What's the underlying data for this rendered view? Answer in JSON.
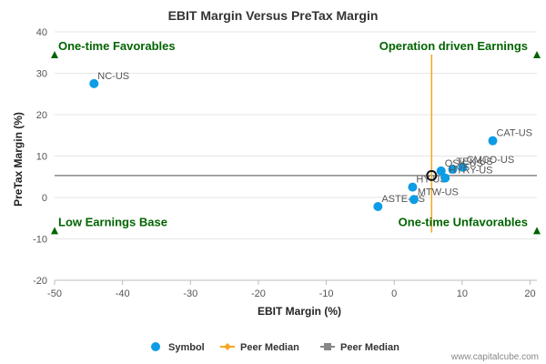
{
  "chart_data": {
    "type": "scatter",
    "title": "EBIT Margin Versus PreTax Margin",
    "xlabel": "EBIT Margin (%)",
    "ylabel": "PreTax Margin (%)",
    "xlim": [
      -50,
      21
    ],
    "ylim": [
      -20,
      40
    ],
    "xticks": [
      -50,
      -40,
      -30,
      -20,
      -10,
      0,
      10,
      20
    ],
    "yticks": [
      -20,
      -10,
      0,
      10,
      20,
      30,
      40
    ],
    "points": [
      {
        "label": "NC-US",
        "x": -44.2,
        "y": 27.5
      },
      {
        "label": "CAT-US",
        "x": 14.5,
        "y": 13.7
      },
      {
        "label": "CMCO-US",
        "x": 10.1,
        "y": 7.3
      },
      {
        "label": "TEX-US",
        "x": 8.6,
        "y": 6.8
      },
      {
        "label": "OSK-US",
        "x": 6.9,
        "y": 6.4
      },
      {
        "label": "ASTE-US",
        "x": -2.4,
        "y": -2.2
      },
      {
        "label": "MTW-US",
        "x": 2.9,
        "y": -0.5
      },
      {
        "label": "HY-US",
        "x": 2.7,
        "y": 2.5
      },
      {
        "label": "HYRY-US",
        "x": 7.5,
        "y": 4.7
      }
    ],
    "peer_median_x": 5.5,
    "peer_median_y": 5.3,
    "peer_median_point": {
      "x": 5.5,
      "y": 5.3
    },
    "quadrant_labels": [
      {
        "text": "One-time Favorables",
        "x": -50,
        "y": 34.5,
        "position": "top-left"
      },
      {
        "text": "Operation driven Earnings",
        "x": 21,
        "y": 34.5,
        "position": "top-right"
      },
      {
        "text": "Low Earnings Base",
        "x": -50,
        "y": -8,
        "position": "bottom-left"
      },
      {
        "text": "One-time Unfavorables",
        "x": 21,
        "y": -8,
        "position": "bottom-right"
      }
    ],
    "legend": {
      "placement": "bottom",
      "items": [
        {
          "name": "Symbol",
          "kind": "dot",
          "color": "#0d9ce6"
        },
        {
          "name": "Peer Median",
          "kind": "vline",
          "color": "#f5a623"
        },
        {
          "name": "Peer Median",
          "kind": "hline",
          "color": "#888888"
        }
      ]
    },
    "colors": {
      "points": "#0d9ce6",
      "vertical_median": "#f5a623",
      "horizontal_median": "#888888",
      "quadrant_text": "#006400",
      "triangle": "#006400"
    },
    "credit": "www.capitalcube.com"
  }
}
